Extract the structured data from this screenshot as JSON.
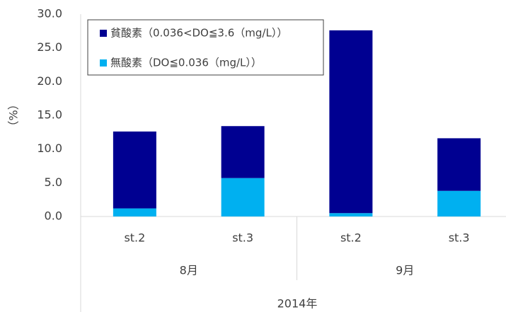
{
  "chart_data": {
    "type": "stacked_bar",
    "y_label": "（%）",
    "categories": [
      "st.2",
      "st.3",
      "st.2",
      "st.3"
    ],
    "groups": [
      "8月",
      "9月"
    ],
    "x_title": "2014年",
    "series": [
      {
        "name": "貧酸素（0.036<DO≦3.6（mg/L））",
        "color": "#000091",
        "values": [
          11.4,
          7.7,
          27.1,
          7.8
        ]
      },
      {
        "name": "無酸素（DO≦0.036（mg/L））",
        "color": "#00b0f0",
        "values": [
          1.2,
          5.7,
          0.5,
          3.8
        ]
      }
    ],
    "ylim": [
      0,
      30
    ],
    "yticks": [
      {
        "value": 0,
        "label": "0.0"
      },
      {
        "value": 5,
        "label": "5.0"
      },
      {
        "value": 10,
        "label": "10.0"
      },
      {
        "value": 15,
        "label": "15.0"
      },
      {
        "value": 20,
        "label": "20.0"
      },
      {
        "value": 25,
        "label": "25.0"
      },
      {
        "value": 30,
        "label": "30.0"
      }
    ],
    "legend": "upper-left"
  }
}
